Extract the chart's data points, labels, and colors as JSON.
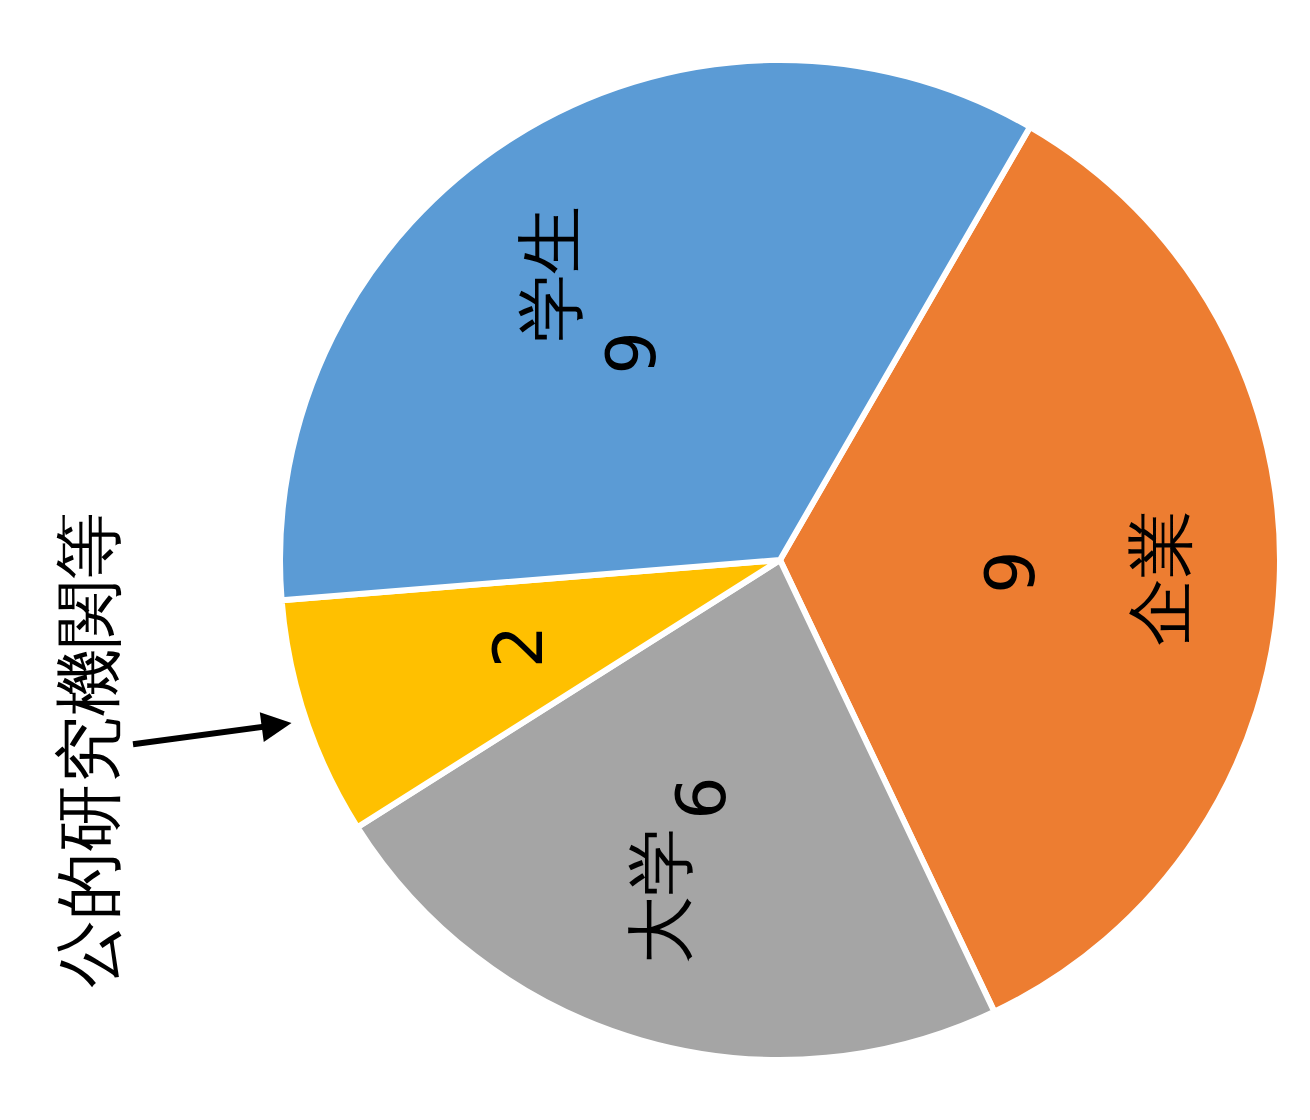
{
  "chart_data": {
    "type": "pie",
    "categories": [
      "企業",
      "大学",
      "公的研究機関等",
      "学生"
    ],
    "values": [
      9,
      6,
      2,
      9
    ],
    "data_labels": true,
    "colors": [
      "#ed7d31",
      "#a5a5a5",
      "#ffc000",
      "#5b9bd5"
    ]
  }
}
